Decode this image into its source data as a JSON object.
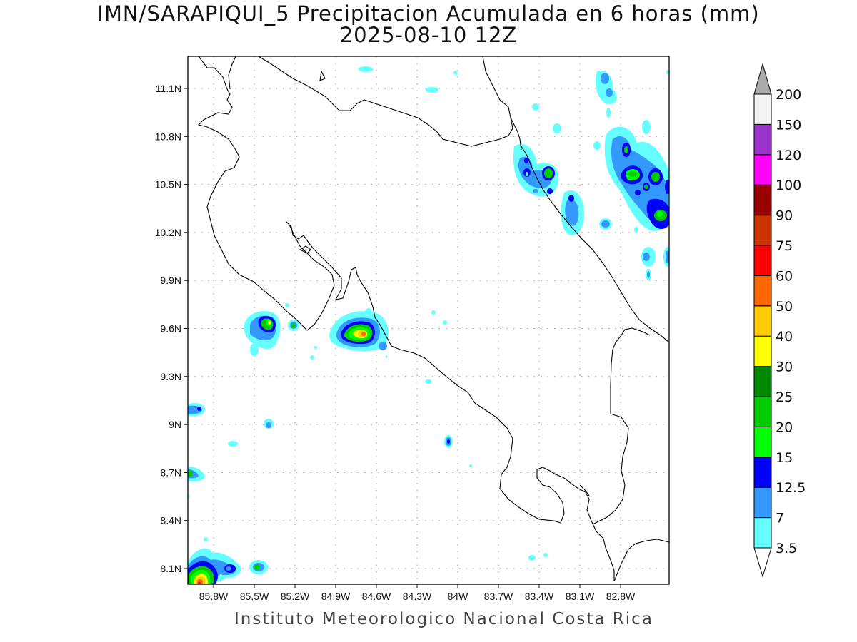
{
  "title": {
    "line1": "IMN/SARAPIQUI_5 Precipitacion Acumulada en 6 horas (mm)",
    "line2": "2025-08-10 12Z"
  },
  "footer": "Instituto Meteorologico Nacional Costa Rica",
  "map": {
    "lon_range": [
      -86.0,
      -83.05
    ],
    "lat_range": [
      8.0,
      11.25
    ],
    "lon_ticks": [
      {
        "label": "85.8W",
        "value": -85.8
      },
      {
        "label": "85.5W",
        "value": -85.5
      },
      {
        "label": "85.2W",
        "value": -85.2
      },
      {
        "label": "84.9W",
        "value": -84.9
      },
      {
        "label": "84.6W",
        "value": -84.6
      },
      {
        "label": "84.3W",
        "value": -84.3
      },
      {
        "label": "84W",
        "value": -84.0
      },
      {
        "label": "83.7W",
        "value": -83.7
      },
      {
        "label": "83.4W",
        "value": -83.4
      },
      {
        "label": "83.1W",
        "value": -83.1
      },
      {
        "label": "82.8W",
        "value": -82.8
      }
    ],
    "lat_ticks": [
      {
        "label": "11.1N",
        "value": 11.1
      },
      {
        "label": "10.8N",
        "value": 10.8
      },
      {
        "label": "10.5N",
        "value": 10.5
      },
      {
        "label": "10.2N",
        "value": 10.2
      },
      {
        "label": "9.9N",
        "value": 9.9
      },
      {
        "label": "9.6N",
        "value": 9.6
      },
      {
        "label": "9.3N",
        "value": 9.3
      },
      {
        "label": "9N",
        "value": 9.0
      },
      {
        "label": "8.7N",
        "value": 8.7
      },
      {
        "label": "8.4N",
        "value": 8.4
      },
      {
        "label": "8.1N",
        "value": 8.1
      }
    ]
  },
  "colorbar": {
    "levels": [
      {
        "label": "3.5",
        "color": "#66ffff"
      },
      {
        "label": "7",
        "color": "#3399ff"
      },
      {
        "label": "12.5",
        "color": "#0000ff"
      },
      {
        "label": "15",
        "color": "#00ff00"
      },
      {
        "label": "20",
        "color": "#00cc00"
      },
      {
        "label": "25",
        "color": "#008800"
      },
      {
        "label": "30",
        "color": "#ffff00"
      },
      {
        "label": "40",
        "color": "#ffcc00"
      },
      {
        "label": "50",
        "color": "#ff6600"
      },
      {
        "label": "60",
        "color": "#ff0000"
      },
      {
        "label": "75",
        "color": "#cc3300"
      },
      {
        "label": "90",
        "color": "#990000"
      },
      {
        "label": "100",
        "color": "#ff00ff"
      },
      {
        "label": "120",
        "color": "#9933cc"
      },
      {
        "label": "150",
        "color": "#f4f4f4"
      },
      {
        "label": "200",
        "color": "#aaaaaa"
      }
    ]
  }
}
